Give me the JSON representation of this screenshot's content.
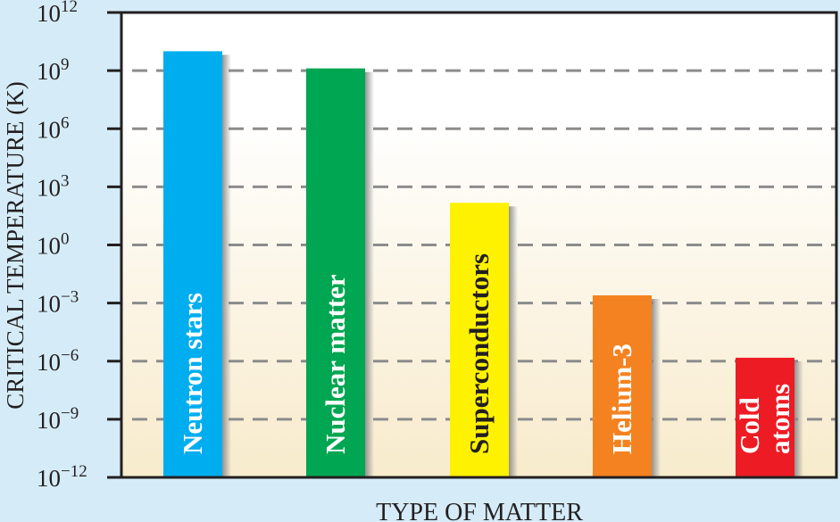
{
  "chart_data": {
    "type": "bar",
    "title": "",
    "xlabel": "TYPE OF MATTER",
    "ylabel": "CRITICAL TEMPERATURE (K)",
    "yscale": "log",
    "ylim": [
      1e-12,
      1000000000000.0
    ],
    "yticks": [
      {
        "base": "10",
        "exp": "12",
        "value": 1000000000000.0
      },
      {
        "base": "10",
        "exp": "9",
        "value": 1000000000.0
      },
      {
        "base": "10",
        "exp": "6",
        "value": 1000000.0
      },
      {
        "base": "10",
        "exp": "3",
        "value": 1000.0
      },
      {
        "base": "10",
        "exp": "0",
        "value": 1
      },
      {
        "base": "10",
        "exp": "−3",
        "value": 0.001
      },
      {
        "base": "10",
        "exp": "−6",
        "value": 1e-06
      },
      {
        "base": "10",
        "exp": "−9",
        "value": 1e-09
      },
      {
        "base": "10",
        "exp": "−12",
        "value": 1e-12
      }
    ],
    "grid": "horizontal dashed",
    "categories": [
      "Neutron stars",
      "Nuclear matter",
      "Superconductors",
      "Helium-3",
      "Cold atoms"
    ],
    "label_lines": [
      [
        "Neutron stars"
      ],
      [
        "Nuclear matter"
      ],
      [
        "Superconductors"
      ],
      [
        "Helium-3"
      ],
      [
        "Cold",
        "atoms"
      ]
    ],
    "values": [
      10000000000.0,
      1300000000.0,
      150,
      0.0025,
      1.5e-06
    ],
    "colors": [
      "#00aeef",
      "#00a651",
      "#fff200",
      "#f58220",
      "#ed1c24"
    ],
    "label_colors": [
      "#ffffff",
      "#ffffff",
      "#231f20",
      "#ffffff",
      "#ffffff"
    ]
  }
}
